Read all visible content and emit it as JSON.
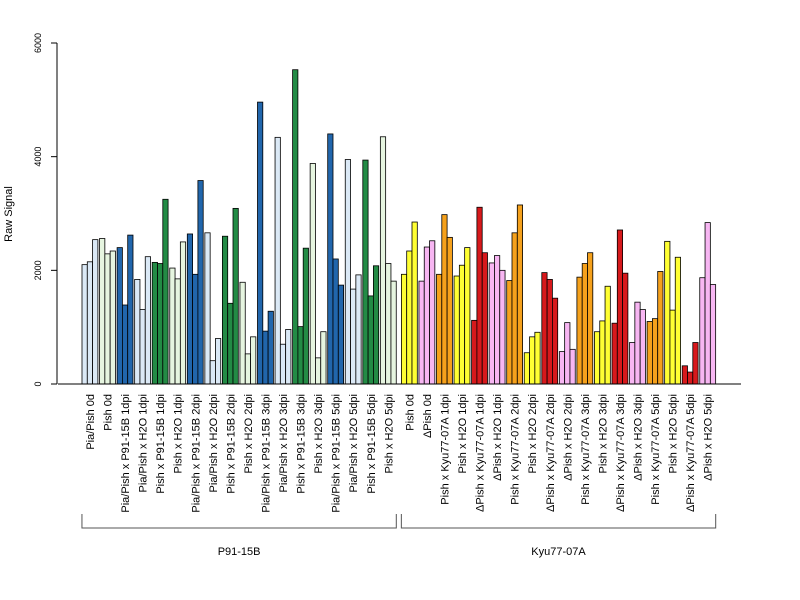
{
  "chart_data": {
    "type": "bar",
    "ylabel": "Raw Signal",
    "ylim": [
      0,
      6000
    ],
    "yticks": [
      0,
      2000,
      4000,
      6000
    ],
    "bars_per_category": 3,
    "categories": [
      {
        "label": "Pia/Pish 0d",
        "group": "P91-15B",
        "color": "#dbe9f6",
        "values": [
          2100,
          2150,
          2540
        ]
      },
      {
        "label": "Pish 0d",
        "group": "P91-15B",
        "color": "#e6f5e0",
        "values": [
          2560,
          2290,
          2340
        ]
      },
      {
        "label": "Pia/Pish x P91-15B 1dpi",
        "group": "P91-15B",
        "color": "#2166ac",
        "values": [
          2400,
          1390,
          2620
        ]
      },
      {
        "label": "Pia/Pish x H2O 1dpi",
        "group": "P91-15B",
        "color": "#dbe9f6",
        "values": [
          1840,
          1310,
          2240
        ]
      },
      {
        "label": "Pish x P91-15B 1dpi",
        "group": "P91-15B",
        "color": "#238b45",
        "values": [
          2140,
          2120,
          3250
        ]
      },
      {
        "label": "Pish x H2O 1dpi",
        "group": "P91-15B",
        "color": "#e6f5e0",
        "values": [
          2040,
          1850,
          2500
        ]
      },
      {
        "label": "Pia/Pish x P91-15B 2dpi",
        "group": "P91-15B",
        "color": "#2166ac",
        "values": [
          2640,
          1930,
          3580
        ]
      },
      {
        "label": "Pia/Pish x H2O 2dpi",
        "group": "P91-15B",
        "color": "#dbe9f6",
        "values": [
          2660,
          410,
          800
        ]
      },
      {
        "label": "Pish x P91-15B 2dpi",
        "group": "P91-15B",
        "color": "#238b45",
        "values": [
          2600,
          1420,
          3090
        ]
      },
      {
        "label": "Pish x H2O 2dpi",
        "group": "P91-15B",
        "color": "#e6f5e0",
        "values": [
          1790,
          530,
          830
        ]
      },
      {
        "label": "Pia/Pish x P91-15B 3dpi",
        "group": "P91-15B",
        "color": "#2166ac",
        "values": [
          4960,
          930,
          1280
        ]
      },
      {
        "label": "Pia/Pish x H2O 3dpi",
        "group": "P91-15B",
        "color": "#dbe9f6",
        "values": [
          4340,
          700,
          960
        ]
      },
      {
        "label": "Pish x P91-15B 3dpi",
        "group": "P91-15B",
        "color": "#238b45",
        "values": [
          5530,
          1010,
          2390
        ]
      },
      {
        "label": "Pish x H2O 3dpi",
        "group": "P91-15B",
        "color": "#e6f5e0",
        "values": [
          3880,
          460,
          920
        ]
      },
      {
        "label": "Pia/Pish x P91-15B 5dpi",
        "group": "P91-15B",
        "color": "#2166ac",
        "values": [
          4400,
          2200,
          1740
        ]
      },
      {
        "label": "Pia/Pish x H2O 5dpi",
        "group": "P91-15B",
        "color": "#dbe9f6",
        "values": [
          3950,
          1670,
          1920
        ]
      },
      {
        "label": "Pish x P91-15B 5dpi",
        "group": "P91-15B",
        "color": "#238b45",
        "values": [
          3940,
          1550,
          2080
        ]
      },
      {
        "label": "Pish x H2O 5dpi",
        "group": "P91-15B",
        "color": "#e6f5e0",
        "values": [
          4350,
          2120,
          1810
        ]
      },
      {
        "label": "Pish 0d",
        "group": "Kyu77-07A",
        "color": "#ffff33",
        "values": [
          1930,
          2340,
          2850
        ]
      },
      {
        "label": "ΔPish 0d",
        "group": "Kyu77-07A",
        "color": "#f7b6f2",
        "values": [
          1810,
          2410,
          2520
        ]
      },
      {
        "label": "Pish x Kyu77-07A 1dpi",
        "group": "Kyu77-07A",
        "color": "#f5a11c",
        "values": [
          1930,
          2980,
          2580
        ]
      },
      {
        "label": "Pish x H2O 1dpi",
        "group": "Kyu77-07A",
        "color": "#ffff33",
        "values": [
          1900,
          2090,
          2400
        ]
      },
      {
        "label": "ΔPish x Kyu77-07A 1dpi",
        "group": "Kyu77-07A",
        "color": "#d7191c",
        "values": [
          1120,
          3110,
          2310
        ]
      },
      {
        "label": "ΔPish x H2O 1dpi",
        "group": "Kyu77-07A",
        "color": "#f7b6f2",
        "values": [
          2130,
          2260,
          2000
        ]
      },
      {
        "label": "Pish x Kyu77-07A 2dpi",
        "group": "Kyu77-07A",
        "color": "#f5a11c",
        "values": [
          1820,
          2660,
          3150
        ]
      },
      {
        "label": "Pish x H2O 2dpi",
        "group": "Kyu77-07A",
        "color": "#ffff33",
        "values": [
          550,
          830,
          910
        ]
      },
      {
        "label": "ΔPish x Kyu77-07A 2dpi",
        "group": "Kyu77-07A",
        "color": "#d7191c",
        "values": [
          1960,
          1840,
          1510
        ]
      },
      {
        "label": "ΔPish x H2O 2dpi",
        "group": "Kyu77-07A",
        "color": "#f7b6f2",
        "values": [
          570,
          1080,
          610
        ]
      },
      {
        "label": "Pish x Kyu77-07A 3dpi",
        "group": "Kyu77-07A",
        "color": "#f5a11c",
        "values": [
          1880,
          2120,
          2310
        ]
      },
      {
        "label": "Pish x H2O 3dpi",
        "group": "Kyu77-07A",
        "color": "#ffff33",
        "values": [
          920,
          1110,
          1720
        ]
      },
      {
        "label": "ΔPish x Kyu77-07A 3dpi",
        "group": "Kyu77-07A",
        "color": "#d7191c",
        "values": [
          1070,
          2710,
          1950
        ]
      },
      {
        "label": "ΔPish x H2O 3dpi",
        "group": "Kyu77-07A",
        "color": "#f7b6f2",
        "values": [
          730,
          1440,
          1310
        ]
      },
      {
        "label": "Pish x Kyu77-07A 5dpi",
        "group": "Kyu77-07A",
        "color": "#f5a11c",
        "values": [
          1100,
          1150,
          1980
        ]
      },
      {
        "label": "Pish x H2O 5dpi",
        "group": "Kyu77-07A",
        "color": "#ffff33",
        "values": [
          2510,
          1300,
          2230
        ]
      },
      {
        "label": "ΔPish x Kyu77-07A 5dpi",
        "group": "Kyu77-07A",
        "color": "#d7191c",
        "values": [
          320,
          210,
          730
        ]
      },
      {
        "label": "ΔPish x H2O 5dpi",
        "group": "Kyu77-07A",
        "color": "#f7b6f2",
        "values": [
          1870,
          2840,
          1750
        ]
      }
    ],
    "groups": [
      "P91-15B",
      "Kyu77-07A"
    ]
  }
}
